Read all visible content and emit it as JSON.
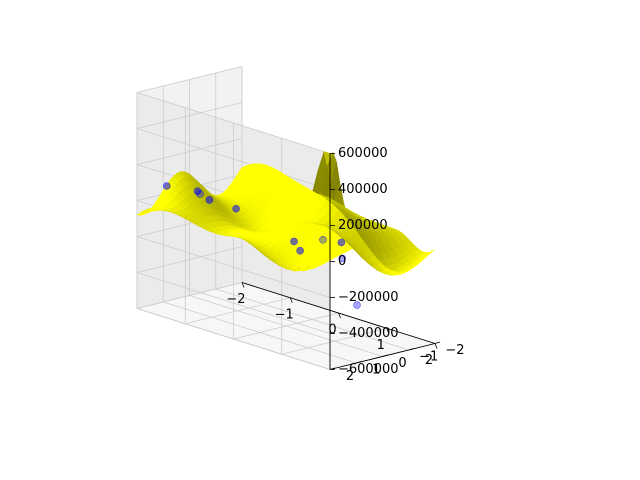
{
  "chart_data": {
    "type": "surface",
    "title": "",
    "xlabel": "",
    "ylabel": "",
    "zlabel": "",
    "x_ticks": [
      -2,
      -1,
      0,
      1,
      2
    ],
    "y_ticks": [
      -2,
      -1,
      0,
      1,
      2
    ],
    "z_ticks": [
      -600000,
      -400000,
      -200000,
      0,
      200000,
      400000,
      600000
    ],
    "x_tick_labels": [
      "−2",
      "−1",
      "0",
      "1",
      "2"
    ],
    "y_tick_labels": [
      "−2",
      "−1",
      "0",
      "1",
      "2"
    ],
    "z_tick_labels": [
      "−600000",
      "−400000",
      "−200000",
      "0",
      "200000",
      "400000",
      "600000"
    ],
    "xlim": [
      -2,
      2
    ],
    "ylim": [
      -2,
      2
    ],
    "zlim": [
      -600000,
      600000
    ],
    "grid": true,
    "surface_color": "#ffff00",
    "scatter_color": "#0000ff",
    "scatter": [
      {
        "x": -1.6,
        "y": 1.6,
        "z": 100000
      },
      {
        "x": -0.8,
        "y": 1.9,
        "z": 150000
      },
      {
        "x": -0.5,
        "y": 2.0,
        "z": 130000
      },
      {
        "x": 0.0,
        "y": 1.9,
        "z": 120000
      },
      {
        "x": 1.2,
        "y": 1.9,
        "z": 40000
      },
      {
        "x": 1.8,
        "y": 1.2,
        "z": 60000
      },
      {
        "x": 1.8,
        "y": 1.9,
        "z": 100000
      },
      {
        "x": -2.0,
        "y": -0.4,
        "z": -50000
      },
      {
        "x": 1.2,
        "y": -0.5,
        "z": -400000
      },
      {
        "x": 1.6,
        "y": 0.8,
        "z": -60000
      },
      {
        "x": 1.0,
        "y": 1.3,
        "z": -50000
      }
    ]
  }
}
